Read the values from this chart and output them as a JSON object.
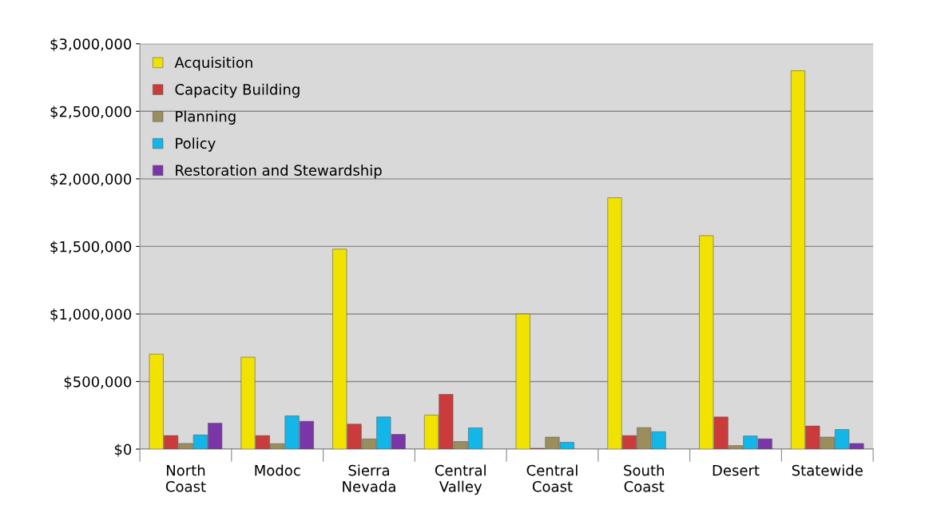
{
  "chart_data": {
    "type": "bar",
    "categories": [
      "North\nCoast",
      "Modoc",
      "Sierra\nNevada",
      "Central\nValley",
      "Central\nCoast",
      "South\nCoast",
      "Desert",
      "Statewide"
    ],
    "series": [
      {
        "name": "Acquisition",
        "color": "#f2e200",
        "values": [
          703000,
          680000,
          1480000,
          252000,
          1000000,
          1860000,
          1580000,
          2800000
        ]
      },
      {
        "name": "Capacity Building",
        "color": "#cc3b3b",
        "values": [
          100000,
          100000,
          185000,
          405000,
          6000,
          100000,
          238000,
          171000
        ]
      },
      {
        "name": "Planning",
        "color": "#9a8f5c",
        "values": [
          42000,
          40000,
          75000,
          56000,
          89000,
          159000,
          26000,
          89000
        ]
      },
      {
        "name": "Policy",
        "color": "#12b6e8",
        "values": [
          105000,
          246000,
          238000,
          157000,
          50000,
          129000,
          97000,
          145000
        ]
      },
      {
        "name": "Restoration and Stewardship",
        "color": "#7a35a8",
        "values": [
          192000,
          206000,
          109000,
          null,
          null,
          null,
          76000,
          42000
        ]
      }
    ],
    "ylim": [
      0,
      3000000
    ],
    "yticks": [
      {
        "value": 0,
        "label": "$0"
      },
      {
        "value": 500000,
        "label": "$500,000"
      },
      {
        "value": 1000000,
        "label": "$1,000,000"
      },
      {
        "value": 1500000,
        "label": "$1,500,000"
      },
      {
        "value": 2000000,
        "label": "$2,000,000"
      },
      {
        "value": 2500000,
        "label": "$2,500,000"
      },
      {
        "value": 3000000,
        "label": "$3,000,000"
      }
    ],
    "grid": "y",
    "legend": "top left"
  }
}
